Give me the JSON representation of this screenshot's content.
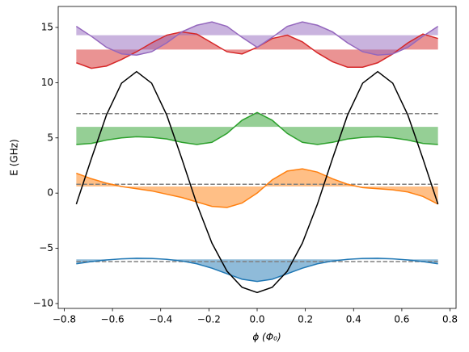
{
  "chart_data": {
    "type": "line",
    "xlabel": "ϕ (Φ₀)",
    "ylabel": "E (GHz)",
    "x": [
      -0.75,
      -0.6875,
      -0.625,
      -0.5625,
      -0.5,
      -0.4375,
      -0.375,
      -0.3125,
      -0.25,
      -0.1875,
      -0.125,
      -0.0625,
      0,
      0.0625,
      0.125,
      0.1875,
      0.25,
      0.3125,
      0.375,
      0.4375,
      0.5,
      0.5625,
      0.625,
      0.6875,
      0.75
    ],
    "series": [
      {
        "color": "#1f77b4",
        "baseline": -6.0,
        "values": [
          -6.4,
          -6.2,
          -6.05,
          -5.95,
          -5.9,
          -5.92,
          -6.0,
          -6.15,
          -6.4,
          -6.8,
          -7.3,
          -7.8,
          -8.0,
          -7.8,
          -7.3,
          -6.8,
          -6.4,
          -6.15,
          -6.0,
          -5.92,
          -5.9,
          -5.95,
          -6.05,
          -6.2,
          -6.4
        ]
      },
      {
        "color": "#ff7f0e",
        "baseline": 0.6,
        "values": [
          1.8,
          1.3,
          0.9,
          0.6,
          0.4,
          0.2,
          -0.1,
          -0.4,
          -0.8,
          -1.2,
          -1.3,
          -0.9,
          0,
          1.2,
          2.0,
          2.2,
          1.9,
          1.3,
          0.8,
          0.5,
          0.4,
          0.3,
          0.1,
          -0.3,
          -1.0
        ]
      },
      {
        "color": "#2ca02c",
        "baseline": 6.0,
        "values": [
          4.4,
          4.5,
          4.8,
          5.0,
          5.1,
          5.05,
          4.9,
          4.6,
          4.4,
          4.6,
          5.4,
          6.6,
          7.3,
          6.6,
          5.4,
          4.6,
          4.4,
          4.6,
          4.9,
          5.05,
          5.1,
          5.0,
          4.8,
          4.5,
          4.4
        ]
      },
      {
        "color": "#d62728",
        "baseline": 13.0,
        "values": [
          11.8,
          11.3,
          11.5,
          12.1,
          12.8,
          13.6,
          14.3,
          14.6,
          14.4,
          13.6,
          12.8,
          12.6,
          13.2,
          14.0,
          14.3,
          13.7,
          12.7,
          11.9,
          11.4,
          11.4,
          11.8,
          12.6,
          13.6,
          14.4,
          14.0
        ]
      },
      {
        "color": "#9467bd",
        "baseline": 14.3,
        "values": [
          15.1,
          14.2,
          13.2,
          12.6,
          12.5,
          12.8,
          13.6,
          14.6,
          15.2,
          15.5,
          15.1,
          14.1,
          13.2,
          14.1,
          15.1,
          15.5,
          15.2,
          14.6,
          13.6,
          12.8,
          12.5,
          12.6,
          13.2,
          14.2,
          15.1
        ]
      },
      {
        "color": "#000000",
        "values": [
          -1,
          3.12,
          7.07,
          9.95,
          11,
          9.95,
          7.07,
          3.12,
          -1,
          -4.53,
          -7.07,
          -8.53,
          -9,
          -8.53,
          -7.07,
          -4.53,
          -1,
          3.12,
          7.07,
          9.95,
          11,
          9.95,
          7.07,
          3.12,
          -1
        ]
      }
    ],
    "hlines": [
      -6.2,
      0.8,
      7.2
    ],
    "hline_color": "#808080",
    "xlim": [
      -0.825,
      0.825
    ],
    "xticks": [
      {
        "value": -0.8,
        "label": "−0.8"
      },
      {
        "value": -0.6,
        "label": "−0.6"
      },
      {
        "value": -0.4,
        "label": "−0.4"
      },
      {
        "value": -0.2,
        "label": "−0.2"
      },
      {
        "value": 0,
        "label": "0.0"
      },
      0.2,
      0.4,
      0.6,
      0.8
    ],
    "ylim": [
      -10.44,
      16.9
    ],
    "yticks": [
      {
        "value": -10,
        "label": "−10"
      },
      {
        "value": -5,
        "label": "−5"
      },
      0,
      5,
      10,
      15
    ]
  }
}
